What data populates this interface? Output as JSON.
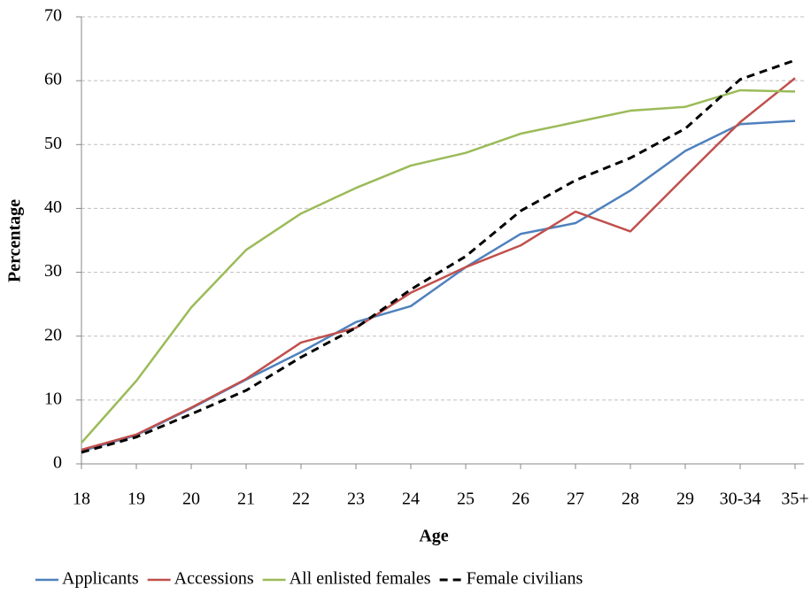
{
  "chart_data": {
    "type": "line",
    "x_label": "Age",
    "y_label": "Percentage",
    "categories": [
      "18",
      "19",
      "20",
      "21",
      "22",
      "23",
      "24",
      "25",
      "26",
      "27",
      "28",
      "29",
      "30-34",
      "35+"
    ],
    "series": [
      {
        "name": "Applicants",
        "color": "#4f81bd",
        "dash": false,
        "values": [
          2,
          4.5,
          8.7,
          13.2,
          17.5,
          22.2,
          24.7,
          30.8,
          36,
          37.7,
          42.8,
          49,
          53.2,
          53.7
        ]
      },
      {
        "name": "Accessions",
        "color": "#c0504d",
        "dash": false,
        "values": [
          2.2,
          4.6,
          8.8,
          13.3,
          19,
          21.3,
          26.8,
          30.8,
          34.2,
          39.5,
          36.4,
          45,
          53.5,
          60.4
        ]
      },
      {
        "name": "All enlisted females",
        "color": "#9bbb59",
        "dash": false,
        "values": [
          3.3,
          13,
          24.5,
          33.5,
          39.2,
          43.2,
          46.7,
          48.7,
          51.7,
          53.5,
          55.3,
          55.9,
          58.5,
          58.3
        ]
      },
      {
        "name": "Female civilians",
        "color": "#000000",
        "dash": true,
        "values": [
          1.8,
          4.2,
          7.8,
          11.5,
          16.7,
          21.3,
          27.3,
          32.5,
          39.6,
          44.4,
          47.9,
          52.5,
          60.2,
          63.2
        ]
      }
    ],
    "ylim": [
      0,
      70
    ],
    "yticks": [
      0,
      10,
      20,
      30,
      40,
      50,
      60,
      70
    ],
    "grid": true,
    "legend": "bottom"
  }
}
